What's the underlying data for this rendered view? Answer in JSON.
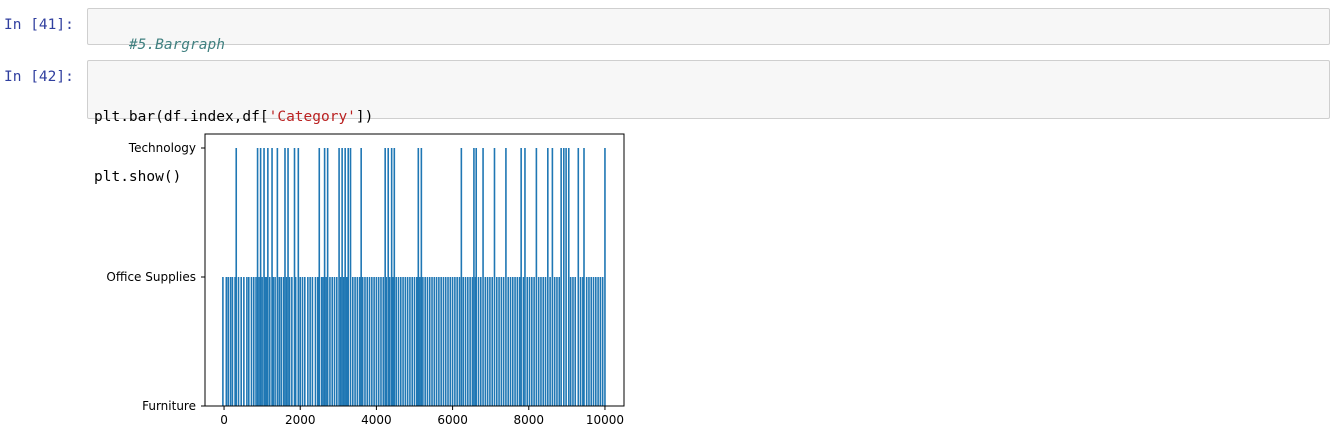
{
  "cells": [
    {
      "prompt": "In [41]:",
      "code_comment": "#5.Bargraph"
    },
    {
      "prompt": "In [42]:",
      "line1_a": "plt.bar(df.index,df[",
      "line1_str": "'Category'",
      "line1_b": "])",
      "line2": "plt.show()"
    }
  ],
  "chart_data": {
    "type": "bar",
    "title": "",
    "xlabel": "",
    "ylabel": "",
    "xlim": [
      -500,
      10500
    ],
    "x_ticks": [
      0,
      2000,
      4000,
      6000,
      8000,
      10000
    ],
    "y_categories": [
      "Furniture",
      "Office Supplies",
      "Technology"
    ],
    "color": "#1f77b4",
    "technology_x": [
      320,
      880,
      960,
      1050,
      1150,
      1260,
      1400,
      1600,
      1680,
      1850,
      1950,
      2500,
      2640,
      2720,
      3020,
      3100,
      3180,
      3260,
      3320,
      3600,
      4230,
      4310,
      4400,
      4470,
      5100,
      5180,
      6230,
      6560,
      6620,
      6800,
      7100,
      7400,
      7800,
      7900,
      8200,
      8500,
      8620,
      8850,
      8920,
      8980,
      9050,
      9300,
      9450,
      10000
    ],
    "office_supplies_x": [
      -30,
      60,
      110,
      170,
      220,
      290,
      380,
      450,
      520,
      600,
      650,
      720,
      780,
      840,
      920,
      1000,
      1080,
      1120,
      1200,
      1290,
      1340,
      1450,
      1500,
      1560,
      1640,
      1720,
      1780,
      1880,
      2000,
      2060,
      2120,
      2200,
      2260,
      2320,
      2400,
      2460,
      2560,
      2600,
      2680,
      2780,
      2840,
      2900,
      2960,
      3060,
      3140,
      3220,
      3380,
      3440,
      3500,
      3560,
      3640,
      3700,
      3760,
      3820,
      3880,
      3940,
      4000,
      4060,
      4120,
      4180,
      4260,
      4350,
      4430,
      4520,
      4580,
      4640,
      4700,
      4760,
      4820,
      4880,
      4940,
      5000,
      5060,
      5140,
      5220,
      5280,
      5340,
      5400,
      5460,
      5520,
      5580,
      5640,
      5700,
      5760,
      5820,
      5880,
      5940,
      6000,
      6060,
      6120,
      6180,
      6280,
      6340,
      6400,
      6460,
      6520,
      6600,
      6680,
      6740,
      6860,
      6920,
      6980,
      7040,
      7160,
      7220,
      7280,
      7340,
      7460,
      7520,
      7580,
      7640,
      7700,
      7760,
      7860,
      7960,
      8020,
      8080,
      8140,
      8260,
      8320,
      8380,
      8440,
      8560,
      8680,
      8740,
      8800,
      9100,
      9160,
      9220,
      9360,
      9420,
      9520,
      9580,
      9640,
      9700,
      9760,
      9820,
      9880,
      9940
    ]
  }
}
